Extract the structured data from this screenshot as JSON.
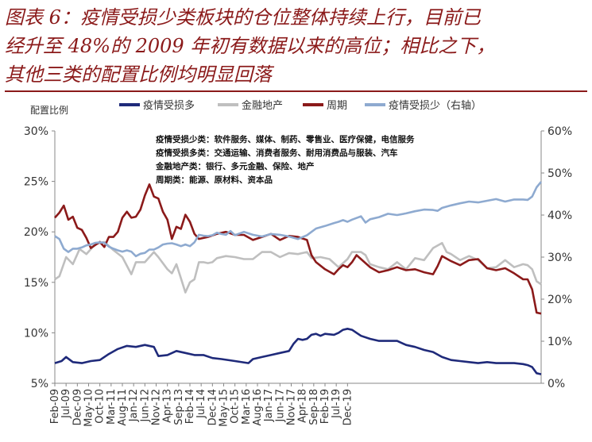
{
  "figure": {
    "title_lines": [
      "图表 6：疫情受损少类板块的仓位整体持续上行，目前已",
      "经升至 48%的 2009 年初有数据以来的高位；相比之下，",
      "其他三类的配置比例均明显回落"
    ]
  },
  "chart_data": {
    "type": "line",
    "ylabel": "配置比例",
    "ylim": [
      5,
      30
    ],
    "y2lim": [
      0,
      60
    ],
    "yticks": [
      "5%",
      "10%",
      "15%",
      "20%",
      "25%",
      "30%"
    ],
    "y2ticks": [
      "0%",
      "10%",
      "20%",
      "30%",
      "40%",
      "50%",
      "60%"
    ],
    "xticks": [
      "Feb-09",
      "Jul-09",
      "Dec-09",
      "May-10",
      "Oct-10",
      "Mar-11",
      "Aug-11",
      "Jan-12",
      "Jun-12",
      "Nov-12",
      "Apr-13",
      "Sep-13",
      "Feb-14",
      "Jul-14",
      "Dec-14",
      "May-15",
      "Oct-15",
      "Mar-16",
      "Aug-16",
      "Jan-17",
      "Jun-17",
      "Nov-17",
      "Apr-18",
      "Sep-18",
      "Feb-19",
      "Jul-19",
      "Dec-19"
    ],
    "legend_position": "top",
    "grid": false,
    "notes": [
      "疫情受损少类：软件服务、媒体、制药、零售业、医疗保健，电信服务",
      "疫情受损多类：交通运输、消费者服务、耐用消费品与服装、汽车",
      "金融地产类：银行、多元金融、保险、地产",
      "周期类：能源、原材料、资本品"
    ],
    "series": [
      {
        "name": "疫情受损多",
        "color": "#1F2A7A",
        "axis": "left",
        "points": [
          [
            0,
            7.0
          ],
          [
            3,
            7.2
          ],
          [
            5,
            7.6
          ],
          [
            8,
            7.1
          ],
          [
            12,
            7.0
          ],
          [
            16,
            7.2
          ],
          [
            20,
            7.3
          ],
          [
            24,
            7.9
          ],
          [
            28,
            8.4
          ],
          [
            32,
            8.7
          ],
          [
            36,
            8.6
          ],
          [
            40,
            8.8
          ],
          [
            44,
            8.6
          ],
          [
            46,
            7.7
          ],
          [
            50,
            7.8
          ],
          [
            54,
            8.2
          ],
          [
            58,
            8.0
          ],
          [
            62,
            7.8
          ],
          [
            66,
            7.8
          ],
          [
            70,
            7.5
          ],
          [
            74,
            7.4
          ],
          [
            80,
            7.2
          ],
          [
            86,
            7.0
          ],
          [
            88,
            7.4
          ],
          [
            92,
            7.6
          ],
          [
            96,
            7.8
          ],
          [
            100,
            8.0
          ],
          [
            104,
            8.2
          ],
          [
            106,
            8.9
          ],
          [
            108,
            9.4
          ],
          [
            110,
            9.3
          ],
          [
            112,
            9.4
          ],
          [
            114,
            9.8
          ],
          [
            116,
            9.9
          ],
          [
            118,
            9.7
          ],
          [
            120,
            9.9
          ],
          [
            124,
            9.8
          ],
          [
            126,
            10.0
          ],
          [
            128,
            10.3
          ],
          [
            130,
            10.4
          ],
          [
            132,
            10.3
          ],
          [
            134,
            10.0
          ],
          [
            136,
            9.7
          ],
          [
            140,
            9.4
          ],
          [
            144,
            9.2
          ],
          [
            148,
            9.2
          ],
          [
            152,
            9.2
          ],
          [
            156,
            8.8
          ],
          [
            160,
            8.6
          ],
          [
            164,
            8.3
          ],
          [
            168,
            8.1
          ],
          [
            172,
            7.6
          ],
          [
            176,
            7.3
          ],
          [
            180,
            7.2
          ],
          [
            184,
            7.1
          ],
          [
            188,
            7.0
          ],
          [
            192,
            7.1
          ],
          [
            196,
            7.0
          ],
          [
            200,
            7.0
          ],
          [
            204,
            7.0
          ],
          [
            208,
            6.9
          ],
          [
            210,
            6.8
          ],
          [
            212,
            6.6
          ],
          [
            214,
            6.0
          ],
          [
            216,
            5.9
          ]
        ]
      },
      {
        "name": "金融地产",
        "color": "#BFBFBF",
        "axis": "left",
        "points": [
          [
            0,
            15.3
          ],
          [
            2,
            15.6
          ],
          [
            5,
            17.5
          ],
          [
            8,
            16.8
          ],
          [
            11,
            18.3
          ],
          [
            14,
            17.8
          ],
          [
            18,
            18.8
          ],
          [
            22,
            19.0
          ],
          [
            26,
            18.2
          ],
          [
            30,
            17.5
          ],
          [
            34,
            15.8
          ],
          [
            36,
            17.0
          ],
          [
            40,
            17.0
          ],
          [
            44,
            18.0
          ],
          [
            46,
            17.5
          ],
          [
            50,
            16.3
          ],
          [
            52,
            15.9
          ],
          [
            54,
            16.8
          ],
          [
            56,
            15.4
          ],
          [
            58,
            14.0
          ],
          [
            60,
            15.0
          ],
          [
            62,
            15.3
          ],
          [
            64,
            17.0
          ],
          [
            66,
            17.0
          ],
          [
            68,
            16.9
          ],
          [
            70,
            17.0
          ],
          [
            72,
            17.4
          ],
          [
            76,
            17.6
          ],
          [
            80,
            17.5
          ],
          [
            84,
            17.3
          ],
          [
            88,
            17.3
          ],
          [
            92,
            18.0
          ],
          [
            96,
            18.0
          ],
          [
            100,
            17.5
          ],
          [
            104,
            17.9
          ],
          [
            108,
            17.8
          ],
          [
            112,
            18.0
          ],
          [
            114,
            17.4
          ],
          [
            118,
            17.5
          ],
          [
            122,
            17.3
          ],
          [
            126,
            16.5
          ],
          [
            130,
            17.3
          ],
          [
            132,
            18.0
          ],
          [
            136,
            18.0
          ],
          [
            138,
            17.7
          ],
          [
            140,
            16.8
          ],
          [
            144,
            16.5
          ],
          [
            148,
            16.3
          ],
          [
            152,
            17.0
          ],
          [
            156,
            16.3
          ],
          [
            160,
            17.4
          ],
          [
            164,
            17.2
          ],
          [
            168,
            18.4
          ],
          [
            172,
            18.9
          ],
          [
            174,
            18.0
          ],
          [
            176,
            17.8
          ],
          [
            180,
            17.2
          ],
          [
            184,
            17.6
          ],
          [
            188,
            17.2
          ],
          [
            192,
            16.4
          ],
          [
            196,
            16.5
          ],
          [
            200,
            17.2
          ],
          [
            204,
            16.5
          ],
          [
            208,
            16.8
          ],
          [
            210,
            16.7
          ],
          [
            212,
            16.3
          ],
          [
            214,
            15.1
          ],
          [
            216,
            14.8
          ]
        ]
      },
      {
        "name": "周期",
        "color": "#8B1A1A",
        "axis": "left",
        "points": [
          [
            0,
            21.4
          ],
          [
            2,
            21.9
          ],
          [
            4,
            22.6
          ],
          [
            6,
            21.2
          ],
          [
            8,
            21.5
          ],
          [
            10,
            20.4
          ],
          [
            12,
            20.2
          ],
          [
            14,
            19.4
          ],
          [
            16,
            18.4
          ],
          [
            18,
            18.7
          ],
          [
            20,
            19.0
          ],
          [
            22,
            18.5
          ],
          [
            24,
            19.5
          ],
          [
            26,
            19.5
          ],
          [
            28,
            20.0
          ],
          [
            30,
            21.4
          ],
          [
            32,
            22.0
          ],
          [
            34,
            21.4
          ],
          [
            36,
            21.5
          ],
          [
            38,
            22.2
          ],
          [
            40,
            23.6
          ],
          [
            42,
            24.7
          ],
          [
            44,
            23.5
          ],
          [
            46,
            23.3
          ],
          [
            48,
            22.0
          ],
          [
            50,
            21.2
          ],
          [
            52,
            19.3
          ],
          [
            54,
            20.5
          ],
          [
            56,
            20.3
          ],
          [
            58,
            21.7
          ],
          [
            60,
            21.0
          ],
          [
            62,
            19.8
          ],
          [
            64,
            19.3
          ],
          [
            68,
            19.5
          ],
          [
            72,
            19.8
          ],
          [
            76,
            20.0
          ],
          [
            80,
            19.7
          ],
          [
            84,
            19.7
          ],
          [
            88,
            19.2
          ],
          [
            92,
            19.5
          ],
          [
            96,
            19.8
          ],
          [
            100,
            19.2
          ],
          [
            104,
            19.6
          ],
          [
            108,
            19.5
          ],
          [
            112,
            19.2
          ],
          [
            114,
            17.7
          ],
          [
            116,
            17.0
          ],
          [
            120,
            16.3
          ],
          [
            124,
            15.8
          ],
          [
            126,
            16.3
          ],
          [
            128,
            16.7
          ],
          [
            130,
            16.5
          ],
          [
            132,
            17.0
          ],
          [
            134,
            17.7
          ],
          [
            136,
            17.3
          ],
          [
            140,
            16.5
          ],
          [
            144,
            16.0
          ],
          [
            148,
            16.2
          ],
          [
            152,
            16.5
          ],
          [
            156,
            16.2
          ],
          [
            160,
            16.3
          ],
          [
            164,
            16.0
          ],
          [
            168,
            15.8
          ],
          [
            170,
            16.6
          ],
          [
            172,
            17.6
          ],
          [
            176,
            17.1
          ],
          [
            180,
            16.7
          ],
          [
            184,
            17.2
          ],
          [
            188,
            17.3
          ],
          [
            192,
            16.4
          ],
          [
            196,
            16.2
          ],
          [
            200,
            16.4
          ],
          [
            204,
            15.9
          ],
          [
            208,
            15.3
          ],
          [
            210,
            15.3
          ],
          [
            212,
            14.3
          ],
          [
            214,
            12.0
          ],
          [
            216,
            11.9
          ]
        ]
      },
      {
        "name": "疫情受损少（右轴）",
        "color": "#8EAAD0",
        "axis": "right",
        "points": [
          [
            0,
            35.0
          ],
          [
            2,
            34.3
          ],
          [
            4,
            32.0
          ],
          [
            6,
            31.2
          ],
          [
            8,
            32.0
          ],
          [
            10,
            32.0
          ],
          [
            12,
            32.3
          ],
          [
            14,
            32.8
          ],
          [
            16,
            33.0
          ],
          [
            18,
            33.4
          ],
          [
            20,
            33.5
          ],
          [
            22,
            33.4
          ],
          [
            24,
            32.5
          ],
          [
            26,
            32.0
          ],
          [
            28,
            31.6
          ],
          [
            30,
            31.3
          ],
          [
            32,
            31.6
          ],
          [
            34,
            31.3
          ],
          [
            36,
            30.2
          ],
          [
            38,
            30.8
          ],
          [
            40,
            31.0
          ],
          [
            42,
            31.8
          ],
          [
            44,
            31.8
          ],
          [
            46,
            32.3
          ],
          [
            48,
            33.0
          ],
          [
            50,
            33.2
          ],
          [
            52,
            33.3
          ],
          [
            54,
            33.0
          ],
          [
            56,
            32.6
          ],
          [
            58,
            33.0
          ],
          [
            60,
            32.6
          ],
          [
            62,
            33.5
          ],
          [
            64,
            35.3
          ],
          [
            66,
            35.1
          ],
          [
            68,
            35.0
          ],
          [
            70,
            35.2
          ],
          [
            72,
            35.8
          ],
          [
            74,
            35.5
          ],
          [
            76,
            35.3
          ],
          [
            78,
            36.2
          ],
          [
            80,
            35.2
          ],
          [
            84,
            36.0
          ],
          [
            88,
            35.3
          ],
          [
            92,
            34.9
          ],
          [
            96,
            35.5
          ],
          [
            100,
            35.3
          ],
          [
            104,
            34.9
          ],
          [
            108,
            34.3
          ],
          [
            112,
            35.2
          ],
          [
            114,
            36.0
          ],
          [
            116,
            36.8
          ],
          [
            120,
            37.4
          ],
          [
            124,
            38.1
          ],
          [
            126,
            38.4
          ],
          [
            128,
            38.8
          ],
          [
            130,
            38.4
          ],
          [
            132,
            38.9
          ],
          [
            134,
            39.3
          ],
          [
            136,
            39.7
          ],
          [
            138,
            38.2
          ],
          [
            140,
            39.0
          ],
          [
            144,
            39.5
          ],
          [
            148,
            40.3
          ],
          [
            152,
            40.0
          ],
          [
            156,
            40.4
          ],
          [
            160,
            40.9
          ],
          [
            164,
            41.3
          ],
          [
            168,
            41.2
          ],
          [
            170,
            41.0
          ],
          [
            172,
            41.7
          ],
          [
            176,
            42.3
          ],
          [
            180,
            42.8
          ],
          [
            184,
            43.2
          ],
          [
            188,
            43.0
          ],
          [
            192,
            43.4
          ],
          [
            196,
            43.8
          ],
          [
            200,
            43.2
          ],
          [
            204,
            43.7
          ],
          [
            208,
            43.7
          ],
          [
            210,
            43.6
          ],
          [
            212,
            44.4
          ],
          [
            214,
            46.6
          ],
          [
            216,
            47.9
          ]
        ]
      }
    ]
  }
}
